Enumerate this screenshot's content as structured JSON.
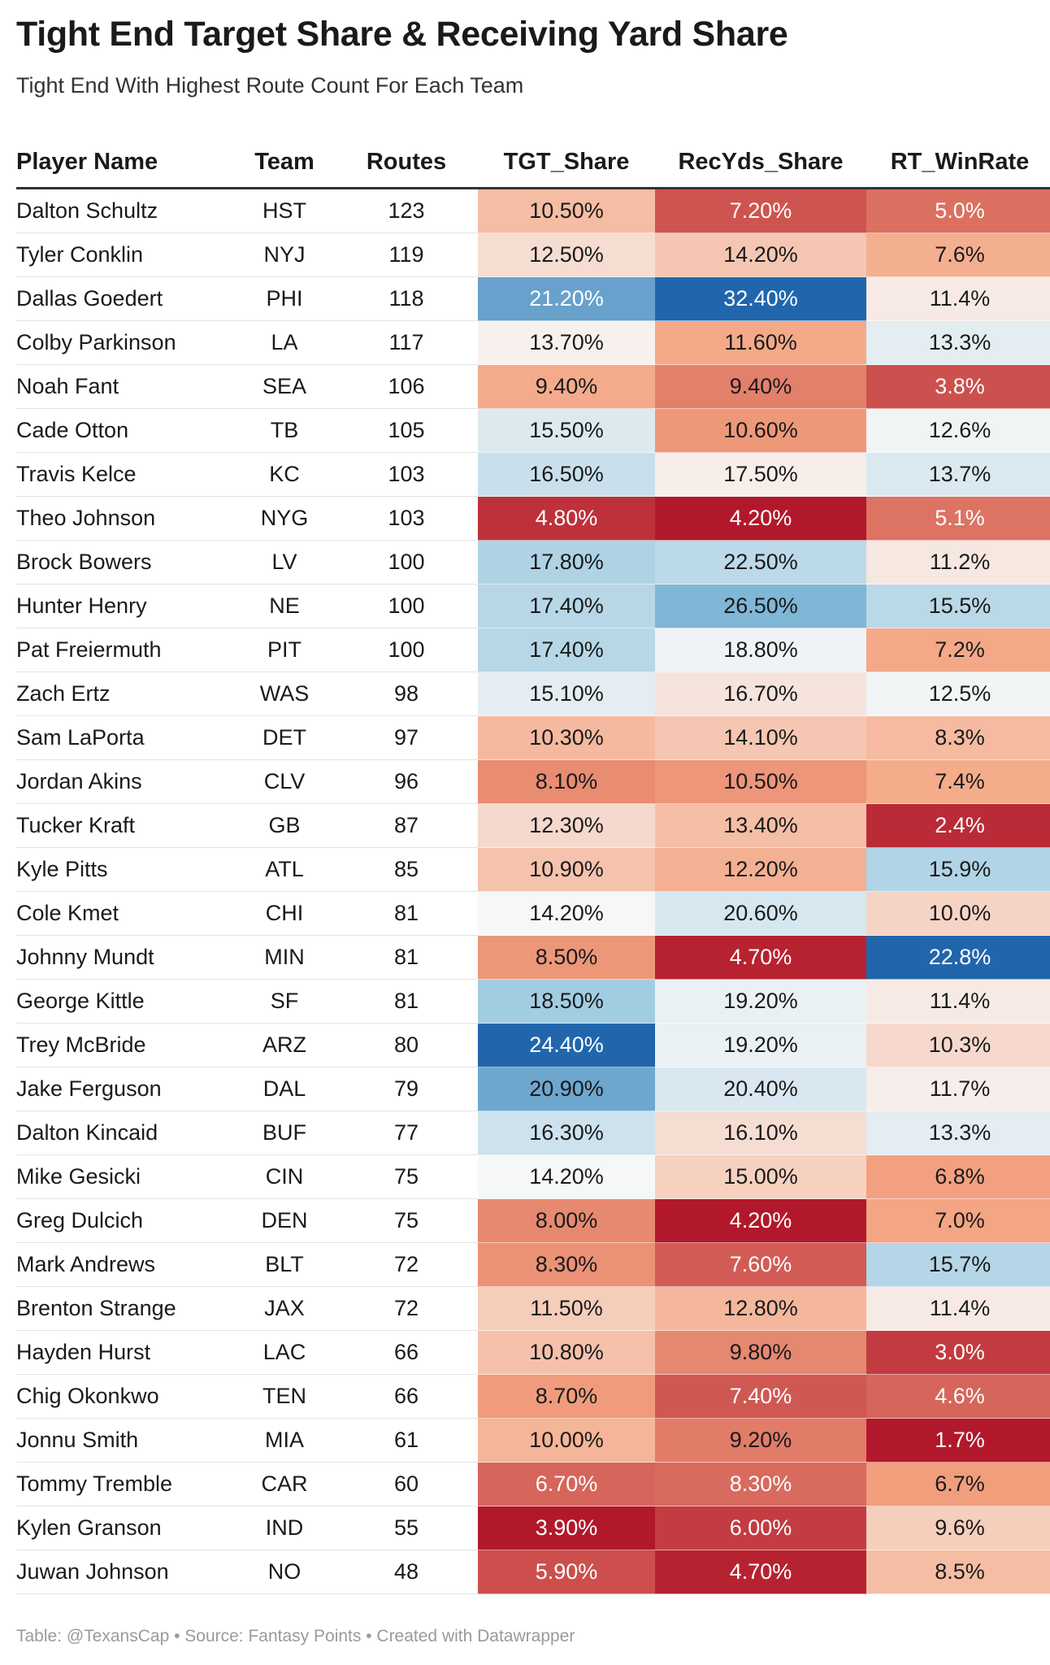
{
  "title": "Tight End Target Share & Receiving Yard Share",
  "subtitle": "Tight End With Highest Route Count For Each Team",
  "footer": "Table: @TexansCap • Source: Fantasy Points • Created with Datawrapper",
  "chart_data": {
    "type": "table",
    "columns": [
      "Player Name",
      "Team",
      "Routes",
      "TGT_Share",
      "RecYds_Share",
      "RT_WinRate"
    ],
    "heatmap_columns": [
      "TGT_Share",
      "RecYds_Share",
      "RT_WinRate"
    ],
    "colors": {
      "low": "#b2182b",
      "mid_low": "#f4a582",
      "neutral": "#f7f7f7",
      "mid_high": "#92c5de",
      "high": "#2166ac"
    },
    "rows": [
      {
        "name": "Dalton Schultz",
        "team": "HST",
        "routes": 123,
        "tgt": "10.50%",
        "rec": "7.20%",
        "rt": "5.0%"
      },
      {
        "name": "Tyler Conklin",
        "team": "NYJ",
        "routes": 119,
        "tgt": "12.50%",
        "rec": "14.20%",
        "rt": "7.6%"
      },
      {
        "name": "Dallas Goedert",
        "team": "PHI",
        "routes": 118,
        "tgt": "21.20%",
        "rec": "32.40%",
        "rt": "11.4%"
      },
      {
        "name": "Colby Parkinson",
        "team": "LA",
        "routes": 117,
        "tgt": "13.70%",
        "rec": "11.60%",
        "rt": "13.3%"
      },
      {
        "name": "Noah Fant",
        "team": "SEA",
        "routes": 106,
        "tgt": "9.40%",
        "rec": "9.40%",
        "rt": "3.8%"
      },
      {
        "name": "Cade Otton",
        "team": "TB",
        "routes": 105,
        "tgt": "15.50%",
        "rec": "10.60%",
        "rt": "12.6%"
      },
      {
        "name": "Travis Kelce",
        "team": "KC",
        "routes": 103,
        "tgt": "16.50%",
        "rec": "17.50%",
        "rt": "13.7%"
      },
      {
        "name": "Theo Johnson",
        "team": "NYG",
        "routes": 103,
        "tgt": "4.80%",
        "rec": "4.20%",
        "rt": "5.1%"
      },
      {
        "name": "Brock Bowers",
        "team": "LV",
        "routes": 100,
        "tgt": "17.80%",
        "rec": "22.50%",
        "rt": "11.2%"
      },
      {
        "name": "Hunter Henry",
        "team": "NE",
        "routes": 100,
        "tgt": "17.40%",
        "rec": "26.50%",
        "rt": "15.5%"
      },
      {
        "name": "Pat Freiermuth",
        "team": "PIT",
        "routes": 100,
        "tgt": "17.40%",
        "rec": "18.80%",
        "rt": "7.2%"
      },
      {
        "name": "Zach Ertz",
        "team": "WAS",
        "routes": 98,
        "tgt": "15.10%",
        "rec": "16.70%",
        "rt": "12.5%"
      },
      {
        "name": "Sam LaPorta",
        "team": "DET",
        "routes": 97,
        "tgt": "10.30%",
        "rec": "14.10%",
        "rt": "8.3%"
      },
      {
        "name": "Jordan Akins",
        "team": "CLV",
        "routes": 96,
        "tgt": "8.10%",
        "rec": "10.50%",
        "rt": "7.4%"
      },
      {
        "name": "Tucker Kraft",
        "team": "GB",
        "routes": 87,
        "tgt": "12.30%",
        "rec": "13.40%",
        "rt": "2.4%"
      },
      {
        "name": "Kyle Pitts",
        "team": "ATL",
        "routes": 85,
        "tgt": "10.90%",
        "rec": "12.20%",
        "rt": "15.9%"
      },
      {
        "name": "Cole Kmet",
        "team": "CHI",
        "routes": 81,
        "tgt": "14.20%",
        "rec": "20.60%",
        "rt": "10.0%"
      },
      {
        "name": "Johnny Mundt",
        "team": "MIN",
        "routes": 81,
        "tgt": "8.50%",
        "rec": "4.70%",
        "rt": "22.8%"
      },
      {
        "name": "George Kittle",
        "team": "SF",
        "routes": 81,
        "tgt": "18.50%",
        "rec": "19.20%",
        "rt": "11.4%"
      },
      {
        "name": "Trey McBride",
        "team": "ARZ",
        "routes": 80,
        "tgt": "24.40%",
        "rec": "19.20%",
        "rt": "10.3%"
      },
      {
        "name": "Jake Ferguson",
        "team": "DAL",
        "routes": 79,
        "tgt": "20.90%",
        "rec": "20.40%",
        "rt": "11.7%"
      },
      {
        "name": "Dalton Kincaid",
        "team": "BUF",
        "routes": 77,
        "tgt": "16.30%",
        "rec": "16.10%",
        "rt": "13.3%"
      },
      {
        "name": "Mike Gesicki",
        "team": "CIN",
        "routes": 75,
        "tgt": "14.20%",
        "rec": "15.00%",
        "rt": "6.8%"
      },
      {
        "name": "Greg Dulcich",
        "team": "DEN",
        "routes": 75,
        "tgt": "8.00%",
        "rec": "4.20%",
        "rt": "7.0%"
      },
      {
        "name": "Mark Andrews",
        "team": "BLT",
        "routes": 72,
        "tgt": "8.30%",
        "rec": "7.60%",
        "rt": "15.7%"
      },
      {
        "name": "Brenton Strange",
        "team": "JAX",
        "routes": 72,
        "tgt": "11.50%",
        "rec": "12.80%",
        "rt": "11.4%"
      },
      {
        "name": "Hayden Hurst",
        "team": "LAC",
        "routes": 66,
        "tgt": "10.80%",
        "rec": "9.80%",
        "rt": "3.0%"
      },
      {
        "name": "Chig Okonkwo",
        "team": "TEN",
        "routes": 66,
        "tgt": "8.70%",
        "rec": "7.40%",
        "rt": "4.6%"
      },
      {
        "name": "Jonnu Smith",
        "team": "MIA",
        "routes": 61,
        "tgt": "10.00%",
        "rec": "9.20%",
        "rt": "1.7%"
      },
      {
        "name": "Tommy Tremble",
        "team": "CAR",
        "routes": 60,
        "tgt": "6.70%",
        "rec": "8.30%",
        "rt": "6.7%"
      },
      {
        "name": "Kylen Granson",
        "team": "IND",
        "routes": 55,
        "tgt": "3.90%",
        "rec": "6.00%",
        "rt": "9.6%"
      },
      {
        "name": "Juwan Johnson",
        "team": "NO",
        "routes": 48,
        "tgt": "5.90%",
        "rec": "4.70%",
        "rt": "8.5%"
      }
    ]
  }
}
